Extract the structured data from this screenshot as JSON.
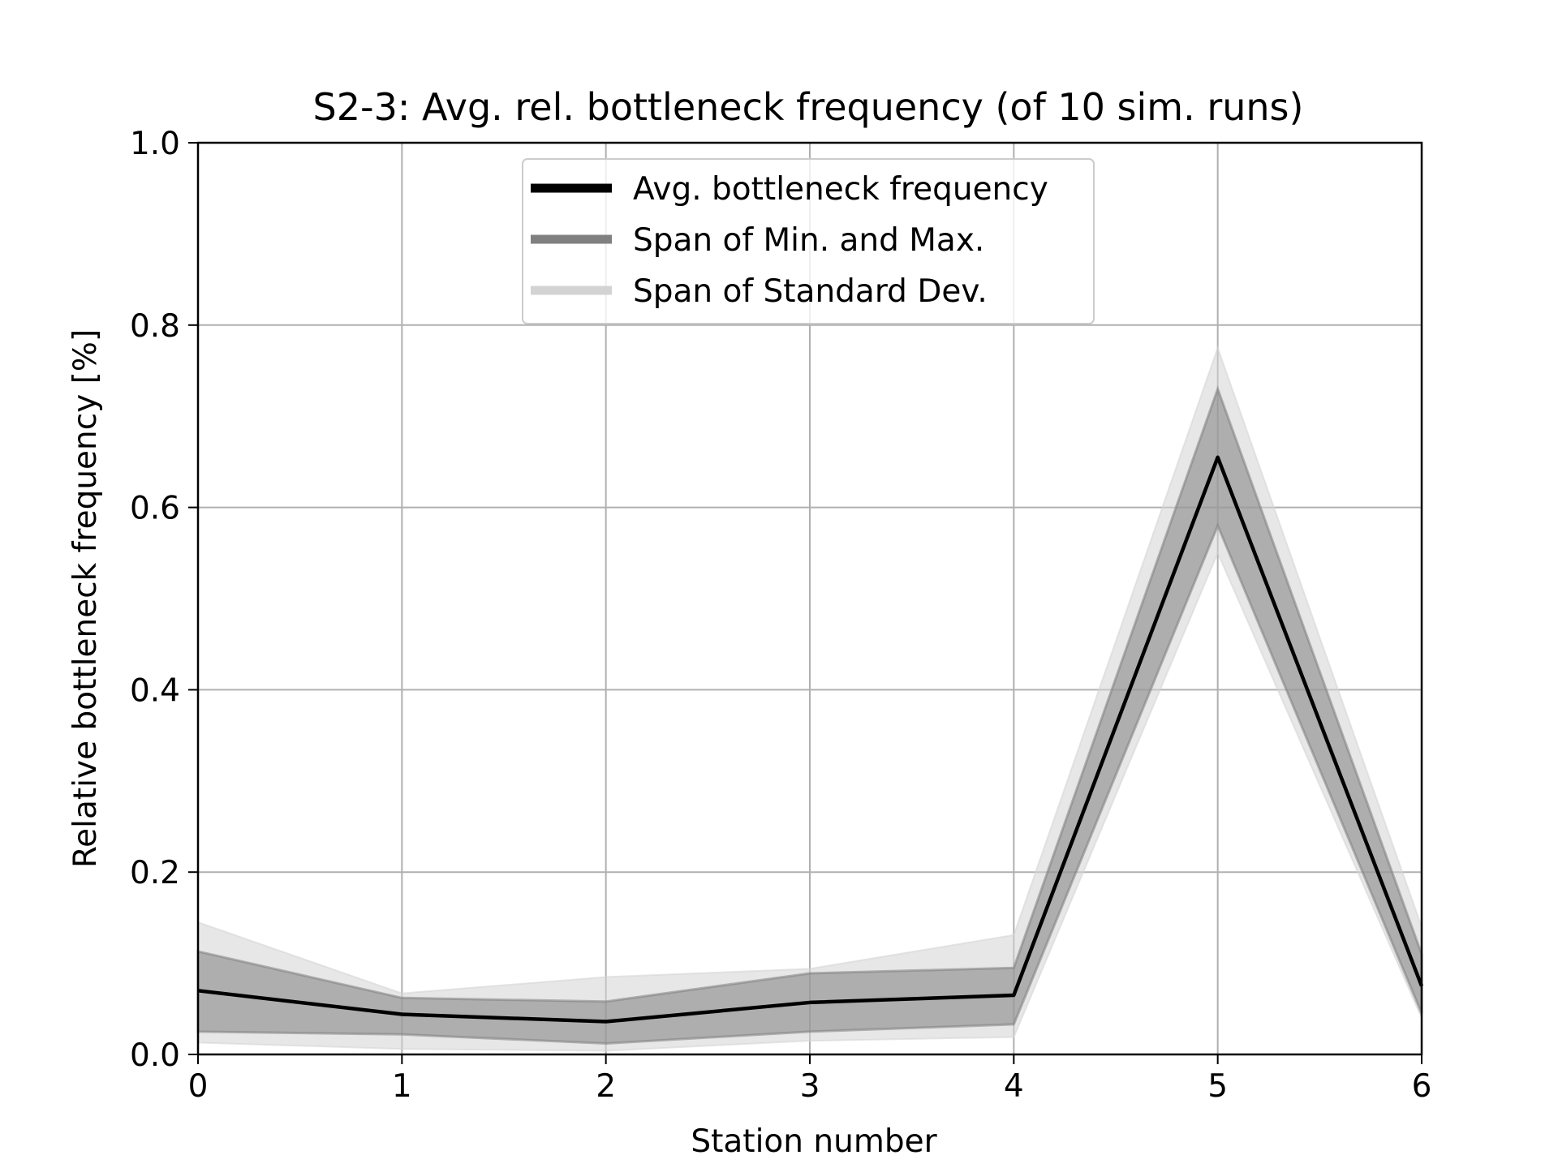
{
  "chart_data": {
    "type": "line",
    "title": "S2-3: Avg. rel. bottleneck frequency (of 10 sim. runs)",
    "xlabel": "Station number",
    "ylabel": "Relative bottleneck frequency [%]",
    "x": [
      0,
      1,
      2,
      3,
      4,
      5,
      6
    ],
    "xlim": [
      0,
      6
    ],
    "ylim": [
      0,
      1.0
    ],
    "xticks": [
      "0",
      "1",
      "2",
      "3",
      "4",
      "5",
      "6"
    ],
    "yticks": [
      "0.0",
      "0.2",
      "0.4",
      "0.6",
      "0.8",
      "1.0"
    ],
    "grid": true,
    "legend_position": "upper center",
    "legend": [
      {
        "label": "Avg. bottleneck frequency",
        "color": "#000000"
      },
      {
        "label": "Span of Min. and Max.",
        "color": "#808080"
      },
      {
        "label": "Span of Standard Dev.",
        "color": "#d3d3d3"
      }
    ],
    "series": [
      {
        "name": "Avg. bottleneck frequency",
        "role": "line",
        "color": "#000000",
        "values": [
          0.07,
          0.044,
          0.036,
          0.057,
          0.065,
          0.655,
          0.075
        ]
      },
      {
        "name": "Span of Min. and Max.",
        "role": "band",
        "color": "#808080",
        "lower": [
          0.025,
          0.022,
          0.012,
          0.025,
          0.033,
          0.58,
          0.045
        ],
        "upper": [
          0.113,
          0.062,
          0.058,
          0.089,
          0.095,
          0.73,
          0.11
        ]
      },
      {
        "name": "Span of Standard Dev.",
        "role": "band",
        "color": "#d3d3d3",
        "lower": [
          0.013,
          0.006,
          0.004,
          0.015,
          0.019,
          0.55,
          0.04
        ],
        "upper": [
          0.145,
          0.067,
          0.085,
          0.094,
          0.131,
          0.775,
          0.14
        ]
      }
    ]
  }
}
